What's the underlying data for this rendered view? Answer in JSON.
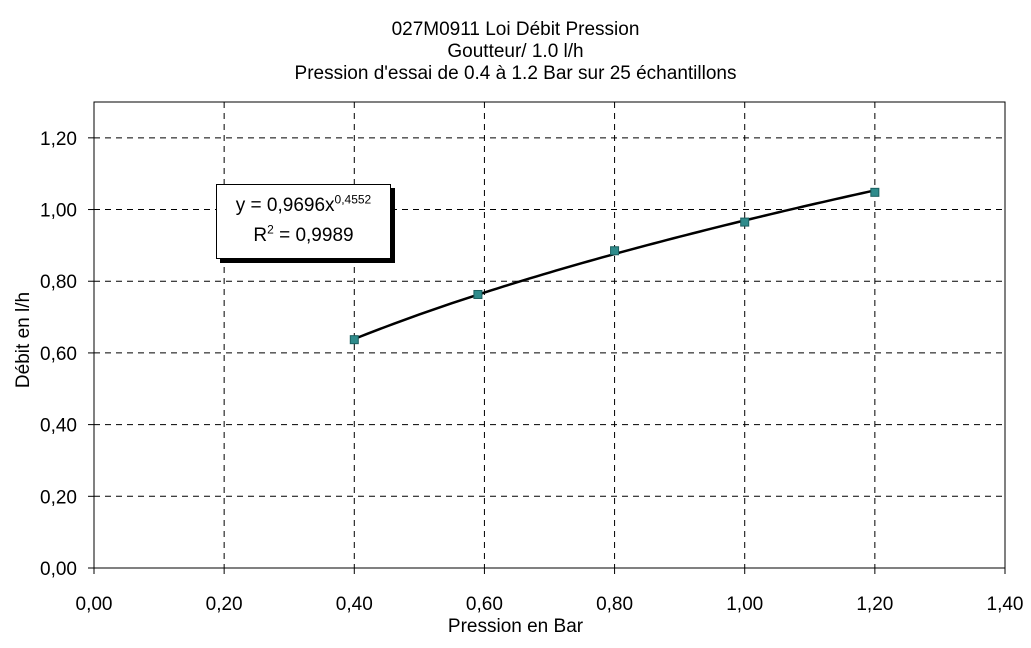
{
  "chart_data": {
    "type": "scatter",
    "title": [
      "027M0911 Loi Débit Pression",
      "Goutteur/ 1.0 l/h",
      "Pression d'essai de 0.4 à 1.2 Bar sur 25 échantillons"
    ],
    "xlabel": "Pression en Bar",
    "ylabel": "Débit en l/h",
    "xlim": [
      0,
      1.4
    ],
    "ylim": [
      0,
      1.3
    ],
    "x_ticks": [
      "0,00",
      "0,20",
      "0,40",
      "0,60",
      "0,80",
      "1,00",
      "1,20",
      "1,40"
    ],
    "y_ticks": [
      "0,00",
      "0,20",
      "0,40",
      "0,60",
      "0,80",
      "1,00",
      "1,20"
    ],
    "grid": true,
    "series": [
      {
        "marker_color": "#2e8b8b",
        "x": [
          0.4,
          0.59,
          0.8,
          1.0,
          1.2
        ],
        "y": [
          0.637,
          0.763,
          0.885,
          0.965,
          1.048
        ]
      }
    ],
    "trendline": {
      "type": "power",
      "a": 0.9696,
      "b": 0.4552,
      "x_range": [
        0.4,
        1.2
      ],
      "color": "#000000"
    },
    "annotation": {
      "eq_prefix": "y = 0,9696x",
      "eq_exponent": "0,4552",
      "r2_prefix": "R",
      "r2_exponent": "2",
      "r2_suffix": " = 0,9989"
    }
  }
}
